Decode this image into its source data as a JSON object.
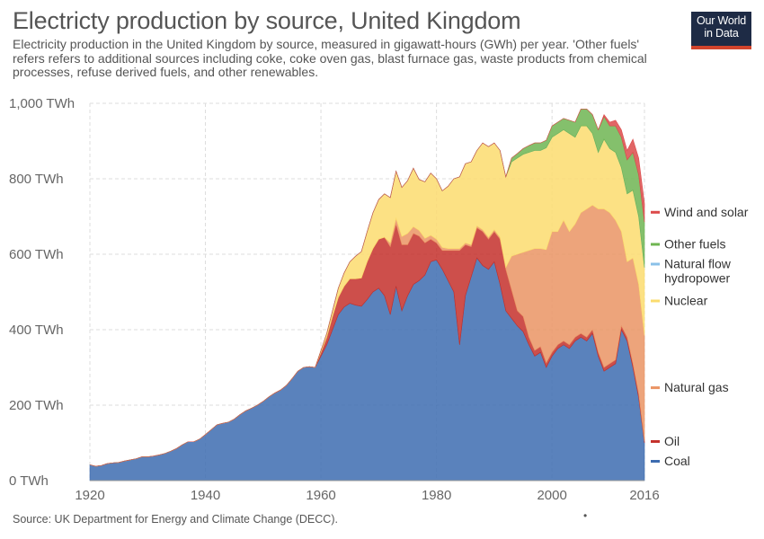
{
  "title": "Electricty production by source, United Kingdom",
  "subtitle": "Electricity production in the United Kingdom by source, measured in gigawatt-hours (GWh) per year. 'Other fuels' refers refers to additional sources including coke, coke oven gas, blast furnace gas, waste products from chemical processes, refuse derived fuels, and other renewables.",
  "logo": {
    "line1": "Our World",
    "line2": "in Data"
  },
  "source": "Source: UK Department for Energy and Climate Change (DECC).",
  "footer_mark": "•",
  "chart_data": {
    "type": "area",
    "stacked": true,
    "title": "Electricty production by source, United Kingdom",
    "xlabel": "",
    "ylabel": "",
    "xlim": [
      1920,
      2016
    ],
    "ylim": [
      0,
      1000
    ],
    "x_ticks": [
      "1920",
      "1940",
      "1960",
      "1980",
      "2000",
      "2016"
    ],
    "y_ticks": [
      {
        "value": 0,
        "label": "0 TWh"
      },
      {
        "value": 200,
        "label": "200 TWh"
      },
      {
        "value": 400,
        "label": "400 TWh"
      },
      {
        "value": 600,
        "label": "600 TWh"
      },
      {
        "value": 800,
        "label": "800 TWh"
      },
      {
        "value": 1000,
        "label": "1,000 TWh"
      }
    ],
    "grid": true,
    "legend": "right, labels at series ends",
    "x": [
      1920,
      1921,
      1922,
      1923,
      1924,
      1925,
      1926,
      1927,
      1928,
      1929,
      1930,
      1931,
      1932,
      1933,
      1934,
      1935,
      1936,
      1937,
      1938,
      1939,
      1940,
      1941,
      1942,
      1943,
      1944,
      1945,
      1946,
      1947,
      1948,
      1949,
      1950,
      1951,
      1952,
      1953,
      1954,
      1955,
      1956,
      1957,
      1958,
      1959,
      1960,
      1961,
      1962,
      1963,
      1964,
      1965,
      1966,
      1967,
      1968,
      1969,
      1970,
      1971,
      1972,
      1973,
      1974,
      1975,
      1976,
      1977,
      1978,
      1979,
      1980,
      1981,
      1982,
      1983,
      1984,
      1985,
      1986,
      1987,
      1988,
      1989,
      1990,
      1991,
      1992,
      1993,
      1994,
      1995,
      1996,
      1997,
      1998,
      1999,
      2000,
      2001,
      2002,
      2003,
      2004,
      2005,
      2006,
      2007,
      2008,
      2009,
      2010,
      2011,
      2012,
      2013,
      2014,
      2015,
      2016
    ],
    "series": [
      {
        "name": "Coal",
        "color": "#3d6cb0",
        "values": [
          42,
          38,
          40,
          45,
          47,
          48,
          52,
          55,
          58,
          63,
          63,
          65,
          68,
          72,
          78,
          85,
          95,
          103,
          103,
          110,
          122,
          135,
          148,
          152,
          155,
          163,
          175,
          185,
          192,
          200,
          210,
          222,
          232,
          240,
          252,
          270,
          290,
          300,
          302,
          300,
          330,
          360,
          400,
          440,
          460,
          470,
          465,
          462,
          480,
          500,
          510,
          490,
          440,
          515,
          450,
          490,
          520,
          530,
          545,
          580,
          585,
          560,
          530,
          500,
          360,
          490,
          540,
          590,
          570,
          560,
          580,
          520,
          450,
          430,
          410,
          395,
          360,
          330,
          340,
          300,
          330,
          350,
          360,
          350,
          370,
          380,
          370,
          390,
          330,
          290,
          300,
          310,
          400,
          370,
          300,
          220,
          100
        ]
      },
      {
        "name": "Oil",
        "color": "#c4302b",
        "values": [
          0,
          0,
          0,
          0,
          0,
          0,
          0,
          0,
          0,
          0,
          0,
          0,
          0,
          0,
          0,
          0,
          0,
          0,
          0,
          0,
          0,
          0,
          0,
          0,
          0,
          0,
          0,
          0,
          0,
          0,
          0,
          0,
          0,
          0,
          0,
          0,
          0,
          0,
          0,
          0,
          10,
          20,
          35,
          45,
          55,
          65,
          70,
          75,
          100,
          115,
          130,
          155,
          180,
          165,
          175,
          135,
          135,
          118,
          85,
          60,
          45,
          50,
          80,
          110,
          250,
          135,
          80,
          80,
          90,
          80,
          80,
          120,
          110,
          75,
          40,
          40,
          20,
          15,
          15,
          12,
          10,
          10,
          10,
          10,
          10,
          10,
          10,
          10,
          10,
          10,
          10,
          10,
          10,
          10,
          10,
          10,
          5
        ]
      },
      {
        "name": "Natural gas",
        "color": "#ea9464",
        "values": [
          0,
          0,
          0,
          0,
          0,
          0,
          0,
          0,
          0,
          0,
          0,
          0,
          0,
          0,
          0,
          0,
          0,
          0,
          0,
          0,
          0,
          0,
          0,
          0,
          0,
          0,
          0,
          0,
          0,
          0,
          0,
          0,
          0,
          0,
          0,
          0,
          0,
          0,
          0,
          0,
          0,
          0,
          0,
          0,
          0,
          0,
          0,
          0,
          0,
          0,
          0,
          0,
          10,
          15,
          22,
          30,
          18,
          15,
          12,
          10,
          10,
          8,
          5,
          5,
          5,
          5,
          5,
          5,
          5,
          5,
          5,
          5,
          5,
          90,
          150,
          170,
          230,
          270,
          260,
          300,
          320,
          300,
          320,
          300,
          300,
          320,
          340,
          330,
          380,
          420,
          400,
          370,
          250,
          200,
          280,
          290,
          280
        ]
      },
      {
        "name": "Nuclear",
        "color": "#fbdc6e",
        "values": [
          0,
          0,
          0,
          0,
          0,
          0,
          0,
          0,
          0,
          0,
          0,
          0,
          0,
          0,
          0,
          0,
          0,
          0,
          0,
          0,
          0,
          0,
          0,
          0,
          0,
          0,
          0,
          0,
          0,
          0,
          0,
          0,
          0,
          0,
          0,
          0,
          0,
          0,
          0,
          0,
          5,
          10,
          15,
          25,
          35,
          45,
          60,
          70,
          80,
          95,
          105,
          115,
          120,
          125,
          130,
          140,
          155,
          135,
          150,
          165,
          160,
          150,
          165,
          185,
          190,
          210,
          220,
          200,
          230,
          240,
          230,
          230,
          240,
          250,
          255,
          260,
          260,
          260,
          260,
          270,
          250,
          260,
          240,
          260,
          230,
          230,
          220,
          190,
          150,
          185,
          170,
          180,
          170,
          180,
          180,
          180,
          180
        ]
      },
      {
        "name": "Natural flow hydropower",
        "color": "#8ac1e8",
        "values": [
          0,
          0,
          0,
          0,
          0,
          0,
          0,
          0,
          0,
          0,
          0,
          0,
          0,
          0,
          0,
          0,
          0,
          0,
          0,
          0,
          0,
          0,
          0,
          0,
          0,
          0,
          0,
          0,
          0,
          0,
          0,
          0,
          0,
          0,
          0,
          0,
          0,
          0,
          0,
          0,
          0,
          0,
          0,
          0,
          0,
          0,
          0,
          0,
          0,
          0,
          0,
          0,
          0,
          0,
          0,
          0,
          0,
          0,
          0,
          0,
          0,
          0,
          0,
          0,
          0,
          0,
          0,
          0,
          0,
          0,
          0,
          0,
          0,
          0,
          0,
          0,
          0,
          0,
          0,
          0,
          0,
          0,
          0,
          0,
          0,
          0,
          0,
          0,
          0,
          0,
          0,
          0,
          0,
          0,
          0,
          0,
          0
        ]
      },
      {
        "name": "Other fuels",
        "color": "#6fb552",
        "values": [
          0,
          0,
          0,
          0,
          0,
          0,
          0,
          0,
          0,
          0,
          0,
          0,
          0,
          0,
          0,
          0,
          0,
          0,
          0,
          0,
          0,
          0,
          0,
          0,
          0,
          0,
          0,
          0,
          0,
          0,
          0,
          0,
          0,
          0,
          0,
          0,
          0,
          0,
          0,
          0,
          0,
          0,
          0,
          0,
          0,
          0,
          0,
          0,
          0,
          0,
          0,
          0,
          0,
          0,
          0,
          0,
          0,
          0,
          0,
          0,
          0,
          0,
          0,
          0,
          0,
          0,
          0,
          0,
          0,
          0,
          0,
          0,
          0,
          10,
          12,
          15,
          18,
          20,
          20,
          20,
          30,
          30,
          30,
          35,
          40,
          45,
          45,
          50,
          60,
          60,
          60,
          70,
          80,
          90,
          100,
          110,
          120
        ]
      },
      {
        "name": "Wind and solar",
        "color": "#dc4b4b",
        "values": [
          0,
          0,
          0,
          0,
          0,
          0,
          0,
          0,
          0,
          0,
          0,
          0,
          0,
          0,
          0,
          0,
          0,
          0,
          0,
          0,
          0,
          0,
          0,
          0,
          0,
          0,
          0,
          0,
          0,
          0,
          0,
          0,
          0,
          0,
          0,
          0,
          0,
          0,
          0,
          0,
          0,
          0,
          0,
          0,
          0,
          0,
          0,
          0,
          0,
          0,
          0,
          0,
          0,
          0,
          0,
          0,
          0,
          0,
          0,
          0,
          0,
          0,
          0,
          0,
          0,
          0,
          0,
          0,
          0,
          0,
          0,
          0,
          0,
          0,
          0,
          0,
          0,
          0,
          0,
          0,
          0,
          0,
          0,
          0,
          0,
          0,
          0,
          0,
          0,
          5,
          10,
          15,
          20,
          25,
          35,
          45,
          50
        ]
      }
    ],
    "legend_labels": [
      {
        "series": "Wind and solar",
        "lines": [
          "Wind and solar"
        ]
      },
      {
        "series": "Other fuels",
        "lines": [
          "Other fuels"
        ]
      },
      {
        "series": "Natural flow hydropower",
        "lines": [
          "Natural flow",
          "hydropower"
        ]
      },
      {
        "series": "Nuclear",
        "lines": [
          "Nuclear"
        ]
      },
      {
        "series": "Natural gas",
        "lines": [
          "Natural gas"
        ]
      },
      {
        "series": "Oil",
        "lines": [
          "Oil"
        ]
      },
      {
        "series": "Coal",
        "lines": [
          "Coal"
        ]
      }
    ]
  }
}
